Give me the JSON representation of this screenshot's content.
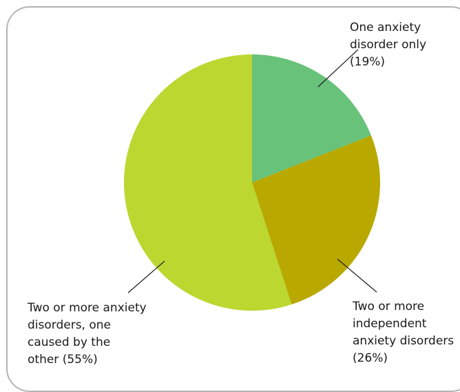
{
  "chart_data": {
    "type": "pie",
    "title": "",
    "slices": [
      {
        "label_lines": [
          "One anxiety",
          "disorder only",
          "(19%)"
        ],
        "value": 19,
        "color": "#68c27a"
      },
      {
        "label_lines": [
          "Two or more",
          "independent",
          "anxiety disorders",
          "(26%)"
        ],
        "value": 26,
        "color": "#b8a800"
      },
      {
        "label_lines": [
          "Two or more anxiety",
          "disorders, one",
          "caused by the",
          "other (55%)"
        ],
        "value": 55,
        "color": "#bdd731"
      }
    ]
  }
}
